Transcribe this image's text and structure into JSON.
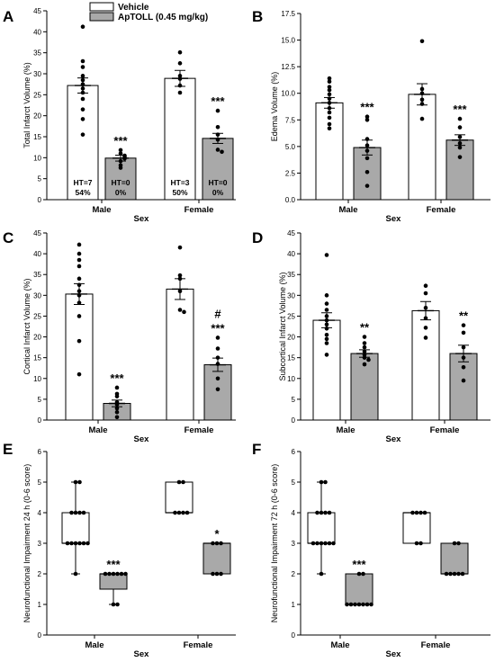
{
  "legend": {
    "vehicle_label": "Vehicle",
    "aptoll_label": "ApTOLL (0.45 mg/kg)",
    "vehicle_color": "#ffffff",
    "aptoll_color": "#a9a9a9"
  },
  "chart_data": [
    {
      "panel": "A",
      "type": "bar",
      "ylabel": "Total Infarct Volume (%)",
      "xlabel": "Sex",
      "ylim": [
        0,
        45
      ],
      "yticks": [
        0,
        5,
        10,
        15,
        20,
        25,
        30,
        35,
        40,
        45
      ],
      "categories": [
        "Male",
        "Female"
      ],
      "series": [
        {
          "name": "Vehicle",
          "values": [
            27.2,
            28.9
          ],
          "errors": [
            1.8,
            1.9
          ],
          "points": [
            [
              41.2,
              33.0,
              31.6,
              29.5,
              28.5,
              27.5,
              26.5,
              25.5,
              24.0,
              21.5,
              19.2,
              15.5
            ],
            [
              35.1,
              32.5,
              29.5,
              28.8,
              27.2,
              25.5
            ]
          ]
        },
        {
          "name": "ApTOLL (0.45 mg/kg)",
          "values": [
            9.9,
            14.6
          ],
          "errors": [
            0.7,
            1.2
          ],
          "points": [
            [
              11.8,
              11.0,
              10.5,
              10.2,
              9.8,
              9.2,
              8.2,
              7.6
            ],
            [
              21.2,
              17.3,
              15.5,
              14.3,
              11.9,
              11.4
            ]
          ]
        }
      ],
      "significance": [
        "",
        "***",
        "",
        "***"
      ],
      "bar_annotations": [
        {
          "line1": "HT=7",
          "line2": "54%"
        },
        {
          "line1": "HT=0",
          "line2": "0%"
        },
        {
          "line1": "HT=3",
          "line2": "50%"
        },
        {
          "line1": "HT=0",
          "line2": "0%"
        }
      ]
    },
    {
      "panel": "B",
      "type": "bar",
      "ylabel": "Edema Volume (%)",
      "xlabel": "Sex",
      "ylim": [
        0,
        17.5
      ],
      "yticks": [
        0.0,
        2.5,
        5.0,
        7.5,
        10.0,
        12.5,
        15.0,
        17.5
      ],
      "categories": [
        "Male",
        "Female"
      ],
      "series": [
        {
          "name": "Vehicle",
          "values": [
            9.1,
            9.9
          ],
          "errors": [
            0.5,
            1.0
          ],
          "points": [
            [
              11.4,
              11.1,
              10.6,
              10.3,
              9.9,
              9.5,
              9.1,
              8.6,
              8.2,
              7.7,
              7.1,
              6.7
            ],
            [
              14.9,
              10.4,
              10.0,
              9.4,
              9.0,
              7.6
            ]
          ]
        },
        {
          "name": "ApTOLL (0.45 mg/kg)",
          "values": [
            4.9,
            5.6
          ],
          "errors": [
            0.7,
            0.5
          ],
          "points": [
            [
              7.8,
              7.5,
              5.7,
              5.1,
              4.6,
              3.9,
              2.6,
              1.3
            ],
            [
              7.6,
              6.8,
              5.9,
              5.3,
              4.9,
              4.0
            ]
          ]
        }
      ],
      "significance": [
        "",
        "***",
        "",
        "***"
      ]
    },
    {
      "panel": "C",
      "type": "bar",
      "ylabel": "Cortical Infarct Volume (%)",
      "xlabel": "Sex",
      "ylim": [
        0,
        45
      ],
      "yticks": [
        0,
        5,
        10,
        15,
        20,
        25,
        30,
        35,
        40,
        45
      ],
      "categories": [
        "Male",
        "Female"
      ],
      "series": [
        {
          "name": "Vehicle",
          "values": [
            30.3,
            31.5
          ],
          "errors": [
            2.5,
            2.5
          ],
          "points": [
            [
              42.2,
              40.0,
              38.5,
              37.0,
              34.0,
              32.5,
              31.0,
              30.0,
              28.2,
              25.0,
              19.0,
              11.0
            ],
            [
              41.5,
              34.8,
              34.0,
              31.0,
              26.5,
              26.0
            ]
          ]
        },
        {
          "name": "ApTOLL (0.45 mg/kg)",
          "values": [
            4.0,
            13.3
          ],
          "errors": [
            0.8,
            1.6
          ],
          "points": [
            [
              7.8,
              6.3,
              5.7,
              4.3,
              3.7,
              2.8,
              1.9,
              0.7
            ],
            [
              19.8,
              17.2,
              15.0,
              13.5,
              10.0,
              7.4
            ]
          ]
        }
      ],
      "significance": [
        "",
        "***",
        "",
        "***"
      ],
      "extra_marks": [
        "",
        "",
        "",
        "#"
      ]
    },
    {
      "panel": "D",
      "type": "bar",
      "ylabel": "Subcortical Infarct Volume (%)",
      "xlabel": "Sex",
      "ylim": [
        0,
        45
      ],
      "yticks": [
        0,
        5,
        10,
        15,
        20,
        25,
        30,
        35,
        40,
        45
      ],
      "categories": [
        "Male",
        "Female"
      ],
      "series": [
        {
          "name": "Vehicle",
          "values": [
            24.0,
            26.3
          ],
          "errors": [
            1.8,
            2.2
          ],
          "points": [
            [
              39.7,
              30.0,
              28.0,
              26.5,
              25.0,
              24.0,
              23.0,
              22.0,
              20.5,
              19.5,
              18.5,
              15.7
            ],
            [
              32.3,
              30.5,
              27.0,
              24.5,
              22.2,
              19.8
            ]
          ]
        },
        {
          "name": "ApTOLL (0.45 mg/kg)",
          "values": [
            16.0,
            16.0
          ],
          "errors": [
            0.9,
            2.0
          ],
          "points": [
            [
              20.0,
              18.5,
              17.5,
              16.5,
              15.7,
              15.0,
              14.5,
              13.4
            ],
            [
              22.8,
              21.0,
              17.5,
              15.0,
              12.7,
              9.5
            ]
          ]
        }
      ],
      "significance": [
        "",
        "**",
        "",
        "**"
      ]
    },
    {
      "panel": "E",
      "type": "box",
      "ylabel": "Neurofunctional Impairment 24 h (0-6 score)",
      "xlabel": "Sex",
      "ylim": [
        0,
        6
      ],
      "yticks": [
        0,
        1,
        2,
        3,
        4,
        5,
        6
      ],
      "categories": [
        "Male",
        "Female"
      ],
      "series": [
        {
          "name": "Vehicle",
          "boxes": [
            {
              "min": 2,
              "q1": 3,
              "median": 3,
              "q3": 4,
              "max": 5
            },
            {
              "min": 4,
              "q1": 4,
              "median": 4,
              "q3": 5,
              "max": 5
            }
          ],
          "points": [
            [
              5,
              5,
              4,
              4,
              4,
              4,
              3,
              3,
              3,
              3,
              3,
              3,
              2
            ],
            [
              5,
              5,
              4,
              4,
              4,
              4
            ]
          ]
        },
        {
          "name": "ApTOLL (0.45 mg/kg)",
          "boxes": [
            {
              "min": 1,
              "q1": 1.5,
              "median": 2,
              "q3": 2,
              "max": 2
            },
            {
              "min": 2,
              "q1": 2,
              "median": 3,
              "q3": 3,
              "max": 3
            }
          ],
          "points": [
            [
              2,
              2,
              2,
              2,
              2,
              2,
              1,
              1
            ],
            [
              3,
              3,
              3,
              2,
              2,
              2
            ]
          ]
        }
      ],
      "significance": [
        "",
        "***",
        "",
        "*"
      ]
    },
    {
      "panel": "F",
      "type": "box",
      "ylabel": "Neurofunctional Impairment 72 h (0-6 score)",
      "xlabel": "Sex",
      "ylim": [
        0,
        6
      ],
      "yticks": [
        0,
        1,
        2,
        3,
        4,
        5,
        6
      ],
      "categories": [
        "Male",
        "Female"
      ],
      "series": [
        {
          "name": "Vehicle",
          "boxes": [
            {
              "min": 2,
              "q1": 3,
              "median": 3,
              "q3": 4,
              "max": 5
            },
            {
              "min": 3,
              "q1": 3,
              "median": 4,
              "q3": 4,
              "max": 4
            }
          ],
          "points": [
            [
              5,
              5,
              4,
              4,
              4,
              4,
              3,
              3,
              3,
              3,
              3,
              3,
              2
            ],
            [
              4,
              4,
              4,
              4,
              3,
              3
            ]
          ]
        },
        {
          "name": "ApTOLL (0.45 mg/kg)",
          "boxes": [
            {
              "min": 1,
              "q1": 1,
              "median": 1,
              "q3": 2,
              "max": 2
            },
            {
              "min": 2,
              "q1": 2,
              "median": 2,
              "q3": 3,
              "max": 3
            }
          ],
          "points": [
            [
              2,
              2,
              1,
              1,
              1,
              1,
              1,
              1,
              1
            ],
            [
              3,
              3,
              2,
              2,
              2,
              2,
              2
            ]
          ]
        }
      ],
      "significance": [
        "",
        "***",
        "",
        ""
      ]
    }
  ]
}
